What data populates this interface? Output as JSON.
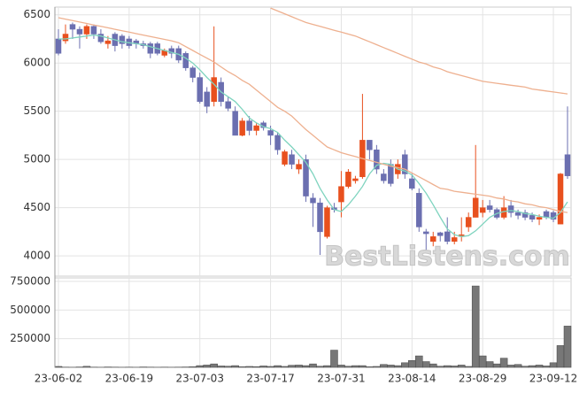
{
  "chart_data": [
    {
      "type": "candlestick",
      "categories": [
        "23-06-02",
        null,
        null,
        null,
        null,
        null,
        null,
        null,
        null,
        null,
        "23-06-19",
        null,
        null,
        null,
        null,
        null,
        null,
        null,
        null,
        null,
        "23-07-03",
        null,
        null,
        null,
        null,
        null,
        null,
        null,
        null,
        null,
        "23-07-17",
        null,
        null,
        null,
        null,
        null,
        null,
        null,
        null,
        null,
        "23-07-31",
        null,
        null,
        null,
        null,
        null,
        null,
        null,
        null,
        null,
        "23-08-14",
        null,
        null,
        null,
        null,
        null,
        null,
        null,
        null,
        null,
        "23-08-29",
        null,
        null,
        null,
        null,
        null,
        null,
        null,
        null,
        null,
        "23-09-12",
        null,
        null
      ],
      "open": [
        6250,
        6230,
        6400,
        6350,
        6300,
        6380,
        6300,
        6200,
        6300,
        6280,
        6250,
        6230,
        6200,
        6200,
        6200,
        6080,
        6150,
        6150,
        6100,
        5950,
        5850,
        5700,
        5600,
        5800,
        5600,
        5500,
        5250,
        5400,
        5300,
        5380,
        5300,
        5250,
        4950,
        5050,
        4900,
        5000,
        4600,
        4550,
        4200,
        4500,
        4560,
        4720,
        4780,
        4820,
        5200,
        5100,
        4850,
        4950,
        4850,
        5050,
        4800,
        4650,
        4250,
        4150,
        4240,
        4250,
        4150,
        4200,
        4300,
        4400,
        4450,
        4520,
        4480,
        4400,
        4520,
        4450,
        4450,
        4420,
        4380,
        4460,
        4450,
        4330,
        5050
      ],
      "high": [
        6350,
        6400,
        6420,
        6380,
        6400,
        6400,
        6350,
        6280,
        6320,
        6300,
        6280,
        6250,
        6230,
        6220,
        6220,
        6150,
        6180,
        6180,
        6120,
        5970,
        5900,
        5750,
        6380,
        5850,
        5650,
        5550,
        5430,
        5450,
        5380,
        5400,
        5350,
        5280,
        5100,
        5100,
        5000,
        5050,
        4650,
        4600,
        4520,
        4550,
        4880,
        4900,
        4830,
        5680,
        5200,
        5150,
        4900,
        5000,
        5000,
        5100,
        4850,
        4700,
        4280,
        4250,
        4250,
        4400,
        4250,
        4400,
        4450,
        5150,
        4580,
        4580,
        4500,
        4620,
        4580,
        4480,
        4480,
        4450,
        4430,
        4480,
        4470,
        4860,
        5550
      ],
      "low": [
        6080,
        6200,
        6250,
        6150,
        6250,
        6250,
        6200,
        6150,
        6120,
        6150,
        6150,
        6150,
        6150,
        6050,
        6080,
        6060,
        6050,
        6000,
        5920,
        5800,
        5580,
        5480,
        5550,
        5550,
        5500,
        5250,
        5240,
        5250,
        5250,
        5300,
        5150,
        5050,
        4930,
        4900,
        4850,
        4560,
        4300,
        4010,
        4180,
        4450,
        4400,
        4700,
        4750,
        4800,
        5000,
        4850,
        4750,
        4720,
        4800,
        4800,
        4680,
        4250,
        4050,
        4100,
        4150,
        4120,
        4120,
        4150,
        4250,
        4400,
        4400,
        4450,
        4380,
        4380,
        4400,
        4380,
        4370,
        4350,
        4320,
        4380,
        4350,
        4330,
        4800
      ],
      "close": [
        6100,
        6300,
        6350,
        6300,
        6380,
        6300,
        6220,
        6230,
        6180,
        6200,
        6180,
        6200,
        6180,
        6100,
        6100,
        6130,
        6100,
        6030,
        5950,
        5850,
        5600,
        5550,
        5850,
        5600,
        5530,
        5250,
        5400,
        5300,
        5350,
        5330,
        5250,
        5100,
        5080,
        4950,
        4950,
        4620,
        4550,
        4250,
        4500,
        4480,
        4720,
        4870,
        4800,
        5200,
        5100,
        4900,
        4780,
        4750,
        4950,
        4850,
        4700,
        4300,
        4230,
        4200,
        4210,
        4150,
        4190,
        4220,
        4400,
        4600,
        4500,
        4480,
        4400,
        4500,
        4450,
        4420,
        4400,
        4380,
        4400,
        4400,
        4380,
        4850,
        4830
      ],
      "up_color": "#e8501e",
      "down_color": "#6b6fb0",
      "series": [
        {
          "color": "#7fd4bf",
          "values": [
            6250,
            6250,
            6260,
            6270,
            6280,
            6290,
            6280,
            6260,
            6240,
            6220,
            6210,
            6200,
            6190,
            6170,
            6150,
            6130,
            6110,
            6090,
            6050,
            6000,
            5930,
            5850,
            5780,
            5700,
            5650,
            5600,
            5520,
            5430,
            5380,
            5340,
            5320,
            5280,
            5200,
            5130,
            5050,
            4970,
            4850,
            4700,
            4580,
            4480,
            4460,
            4530,
            4620,
            4720,
            4850,
            4940,
            4960,
            4950,
            4900,
            4880,
            4840,
            4750,
            4650,
            4530,
            4400,
            4280,
            4220,
            4200,
            4210,
            4260,
            4330,
            4400,
            4440,
            4460,
            4470,
            4460,
            4440,
            4430,
            4410,
            4400,
            4390,
            4450,
            4560
          ]
        },
        {
          "color": "#eeb08f",
          "values": [
            6470,
            6455,
            6440,
            6425,
            6410,
            6395,
            6380,
            6365,
            6350,
            6335,
            6320,
            6305,
            6290,
            6275,
            6260,
            6245,
            6230,
            6210,
            6170,
            6130,
            6090,
            6050,
            6010,
            5960,
            5910,
            5870,
            5820,
            5780,
            5720,
            5660,
            5600,
            5540,
            5500,
            5450,
            5380,
            5310,
            5250,
            5190,
            5130,
            5100,
            5070,
            5050,
            5030,
            5010,
            4990,
            4970,
            4950,
            4930,
            4915,
            4900,
            4860,
            4820,
            4780,
            4740,
            4700,
            4690,
            4670,
            4660,
            4650,
            4640,
            4630,
            4620,
            4600,
            4590,
            4570,
            4560,
            4540,
            4530,
            4510,
            4500,
            4480,
            4460,
            4450
          ]
        },
        {
          "color": "#eeb08f",
          "values": [
            null,
            null,
            null,
            null,
            null,
            null,
            null,
            null,
            null,
            null,
            null,
            null,
            null,
            null,
            null,
            null,
            null,
            null,
            null,
            null,
            null,
            null,
            null,
            null,
            null,
            null,
            null,
            null,
            null,
            null,
            6570,
            6540,
            6510,
            6480,
            6450,
            6420,
            6400,
            6380,
            6360,
            6340,
            6320,
            6300,
            6280,
            6250,
            6220,
            6190,
            6160,
            6130,
            6100,
            6070,
            6040,
            6010,
            5990,
            5960,
            5940,
            5910,
            5890,
            5870,
            5850,
            5830,
            5810,
            5800,
            5790,
            5780,
            5770,
            5760,
            5750,
            5730,
            5720,
            5710,
            5700,
            5690,
            5680
          ]
        }
      ],
      "ylim": [
        3790,
        6580
      ],
      "yticks": [
        4000,
        4500,
        5000,
        5500,
        6000,
        6500
      ],
      "grid": true,
      "watermark": "BestListens.com"
    },
    {
      "type": "bar",
      "color": "#777777",
      "values": [
        8000,
        2000,
        1000,
        3000,
        9000,
        2000,
        1000,
        3000,
        2000,
        1000,
        2000,
        1000,
        3000,
        2000,
        1000,
        2000,
        1000,
        2000,
        3000,
        5000,
        15000,
        20000,
        30000,
        12000,
        10000,
        15000,
        5000,
        8000,
        6000,
        12000,
        8000,
        15000,
        8000,
        18000,
        20000,
        15000,
        30000,
        10000,
        15000,
        150000,
        20000,
        10000,
        15000,
        15000,
        5000,
        8000,
        25000,
        20000,
        15000,
        40000,
        60000,
        100000,
        50000,
        30000,
        10000,
        15000,
        12000,
        20000,
        8000,
        710000,
        100000,
        50000,
        30000,
        80000,
        20000,
        25000,
        10000,
        15000,
        20000,
        12000,
        40000,
        190000,
        360000
      ],
      "ylim": [
        0,
        780000
      ],
      "yticks": [
        250000,
        500000,
        750000
      ],
      "grid": true
    }
  ]
}
